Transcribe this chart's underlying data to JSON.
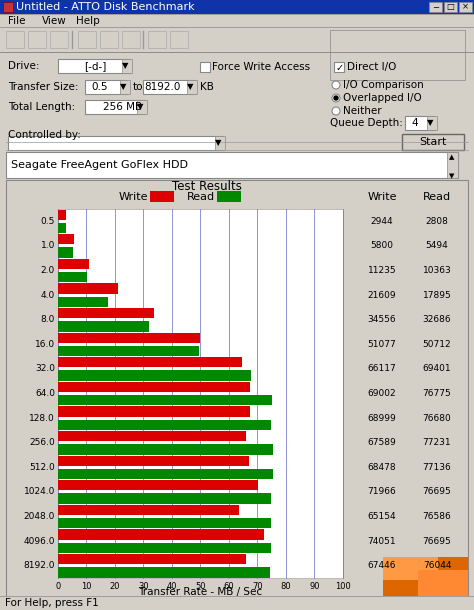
{
  "title": "Untitled - ATTO Disk Benchmark",
  "device_text": "Seagate FreeAgent GoFlex HDD",
  "categories": [
    "0.5",
    "1.0",
    "2.0",
    "4.0",
    "8.0",
    "16.0",
    "32.0",
    "64.0",
    "128.0",
    "256.0",
    "512.0",
    "1024.0",
    "2048.0",
    "4096.0",
    "8192.0"
  ],
  "write_values": [
    2944,
    5800,
    11235,
    21609,
    34556,
    51077,
    66117,
    69002,
    68999,
    67589,
    68478,
    71966,
    65154,
    74051,
    67446
  ],
  "read_values": [
    2808,
    5494,
    10363,
    17895,
    32686,
    50712,
    69401,
    76775,
    76680,
    77231,
    77136,
    76695,
    76586,
    76695,
    76044
  ],
  "write_color": "#dd0000",
  "read_color": "#008800",
  "chart_bg": "#ffffff",
  "title_bar_color": "#1133aa",
  "window_bg": "#d4d0c8",
  "max_mb": 100,
  "max_kbps": 102400,
  "xlabel": "Transfer Rate - MB / Sec",
  "chart_title": "Test Results",
  "write_label": "Write",
  "read_label": "Read",
  "grid_ticks": [
    0,
    10,
    20,
    30,
    40,
    50,
    60,
    70,
    80,
    90,
    100
  ],
  "write_nums": [
    "2944",
    "5800",
    "11235",
    "21609",
    "34556",
    "51077",
    "66117",
    "69002",
    "68999",
    "67589",
    "68478",
    "71966",
    "65154",
    "74051",
    "67446"
  ],
  "read_nums": [
    "2808",
    "5494",
    "10363",
    "17895",
    "32686",
    "50712",
    "69401",
    "76775",
    "76680",
    "77231",
    "77136",
    "76695",
    "76586",
    "76695",
    "76044"
  ]
}
